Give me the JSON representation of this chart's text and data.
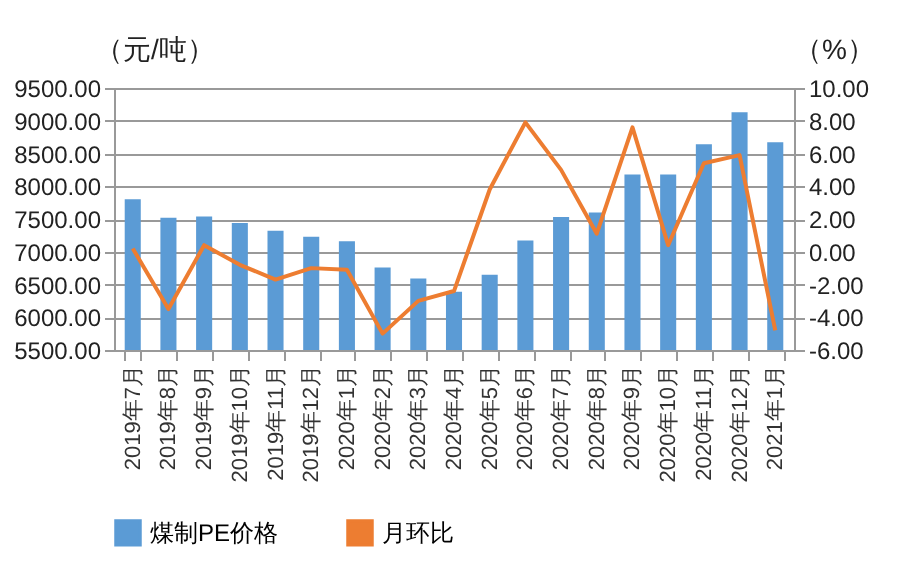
{
  "chart_data": {
    "type": "bar",
    "ylabel": "（元/吨）",
    "y2label": "（%）",
    "categories": [
      "2019年7月",
      "2019年8月",
      "2019年9月",
      "2019年10月",
      "2019年11月",
      "2019年12月",
      "2020年1月",
      "2020年2月",
      "2020年3月",
      "2020年4月",
      "2020年5月",
      "2020年6月",
      "2020年7月",
      "2020年8月",
      "2020年9月",
      "2020年10月",
      "2020年11月",
      "2020年12月",
      "2021年1月"
    ],
    "series": [
      {
        "name": "煤制PE价格",
        "color": "#5b9bd5",
        "values": [
          7800,
          7520,
          7540,
          7440,
          7320,
          7230,
          7160,
          6760,
          6590,
          6390,
          6650,
          7170,
          7530,
          7600,
          8180,
          8180,
          8640,
          9130,
          8670
        ]
      },
      {
        "name": "月环比",
        "type": "line",
        "axis": "y2",
        "color": "#ed7d31",
        "values": [
          0.2,
          -3.5,
          0.4,
          -0.8,
          -1.7,
          -1.0,
          -1.1,
          -5.0,
          -3.0,
          -2.4,
          3.8,
          7.9,
          5.0,
          1.1,
          7.6,
          0.4,
          5.4,
          5.9,
          -4.8
        ]
      }
    ],
    "ylim": [
      5500,
      9500
    ],
    "yticks": [
      {
        "value": 5500,
        "label": "5500.00"
      },
      {
        "value": 6000,
        "label": "6000.00"
      },
      {
        "value": 6500,
        "label": "6500.00"
      },
      {
        "value": 7000,
        "label": "7000.00"
      },
      {
        "value": 7500,
        "label": "7500.00"
      },
      {
        "value": 8000,
        "label": "8000.00"
      },
      {
        "value": 8500,
        "label": "8500.00"
      },
      {
        "value": 9000,
        "label": "9000.00"
      },
      {
        "value": 9500,
        "label": "9500.00"
      }
    ],
    "y2lim": [
      -6,
      10
    ],
    "y2ticks": [
      {
        "value": -6,
        "label": "-6.00"
      },
      {
        "value": -4,
        "label": "-4.00"
      },
      {
        "value": -2,
        "label": "-2.00"
      },
      {
        "value": 0,
        "label": "0.00"
      },
      {
        "value": 2,
        "label": "2.00"
      },
      {
        "value": 4,
        "label": "4.00"
      },
      {
        "value": 6,
        "label": "6.00"
      },
      {
        "value": 8,
        "label": "8.00"
      },
      {
        "value": 10,
        "label": "10.00"
      }
    ],
    "grid": "y",
    "legend": "bottom",
    "marker": "none",
    "line_style": "solid"
  }
}
